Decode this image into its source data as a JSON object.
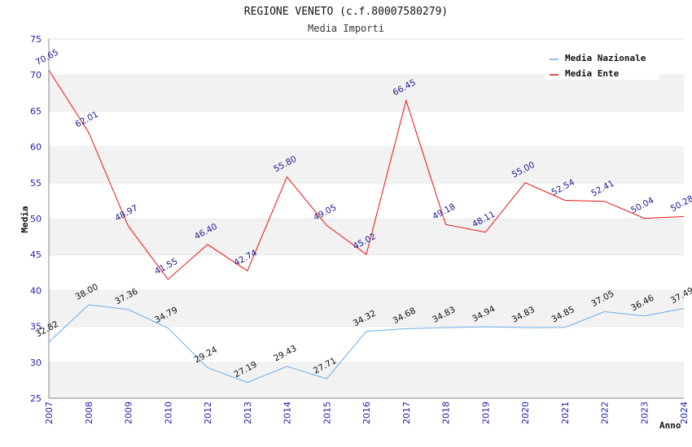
{
  "chart_data": {
    "type": "line",
    "title": "REGIONE VENETO (c.f.80007580279)",
    "subtitle": "Media Importi",
    "xlabel": "Anno",
    "ylabel": "Media",
    "ylim": [
      25,
      75
    ],
    "yticks": [
      25,
      30,
      35,
      40,
      45,
      50,
      55,
      60,
      65,
      70,
      75
    ],
    "grid": "horizontal bands",
    "legend_position": "top-right",
    "categories": [
      "2007",
      "2008",
      "2009",
      "2010",
      "2012",
      "2013",
      "2014",
      "2015",
      "2016",
      "2017",
      "2018",
      "2019",
      "2020",
      "2021",
      "2022",
      "2023",
      "2024"
    ],
    "series": [
      {
        "name": "Media Nazionale",
        "color": "#6aaee8",
        "label_color": "#111111",
        "values": [
          32.82,
          38.0,
          37.36,
          34.79,
          29.24,
          27.19,
          29.43,
          27.71,
          34.32,
          34.68,
          34.83,
          34.94,
          34.83,
          34.85,
          37.05,
          36.46,
          37.49
        ],
        "labels": [
          "32.82",
          "38.00",
          "37.36",
          "34.79",
          "29.24",
          "27.19",
          "29.43",
          "27.71",
          "34.32",
          "34.68",
          "34.83",
          "34.94",
          "34.83",
          "34.85",
          "37.05",
          "36.46",
          "37.49"
        ]
      },
      {
        "name": "Media Ente",
        "color": "#ee1111",
        "label_color": "#1a1a8c",
        "values": [
          70.65,
          62.01,
          48.97,
          41.55,
          46.4,
          42.74,
          55.8,
          49.05,
          45.02,
          66.45,
          49.18,
          48.11,
          55.0,
          52.54,
          52.41,
          50.04,
          50.28
        ],
        "labels": [
          "70.65",
          "62.01",
          "48.97",
          "41.55",
          "46.40",
          "42.74",
          "55.80",
          "49.05",
          "45.02",
          "66.45",
          "49.18",
          "48.11",
          "55.00",
          "52.54",
          "52.41",
          "50.04",
          "50.28"
        ]
      }
    ]
  }
}
